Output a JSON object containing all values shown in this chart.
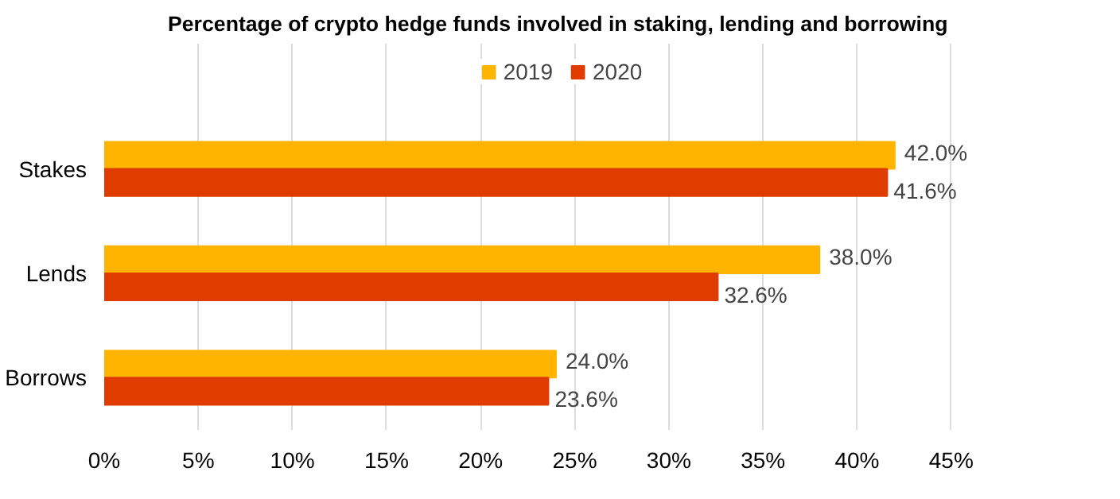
{
  "chart_data": {
    "type": "bar",
    "orientation": "horizontal",
    "title": "Percentage of crypto hedge funds involved in staking, lending and borrowing",
    "categories": [
      "Stakes",
      "Lends",
      "Borrows"
    ],
    "series": [
      {
        "name": "2019",
        "color": "#ffb500",
        "values": [
          42.0,
          38.0,
          24.0
        ],
        "value_labels": [
          "42.0%",
          "38.0%",
          "24.0%"
        ]
      },
      {
        "name": "2020",
        "color": "#e03c00",
        "values": [
          41.6,
          32.6,
          23.6
        ],
        "value_labels": [
          "41.6%",
          "32.6%",
          "23.6%"
        ]
      }
    ],
    "xlim": [
      0,
      45
    ],
    "xticks": [
      {
        "value": 0,
        "label": "0%"
      },
      {
        "value": 5,
        "label": "5%"
      },
      {
        "value": 10,
        "label": "10%"
      },
      {
        "value": 15,
        "label": "15%"
      },
      {
        "value": 20,
        "label": "20%"
      },
      {
        "value": 25,
        "label": "25%"
      },
      {
        "value": 30,
        "label": "30%"
      },
      {
        "value": 35,
        "label": "35%"
      },
      {
        "value": 40,
        "label": "40%"
      },
      {
        "value": 45,
        "label": "45%"
      }
    ],
    "grid": "x",
    "legend": "top"
  }
}
